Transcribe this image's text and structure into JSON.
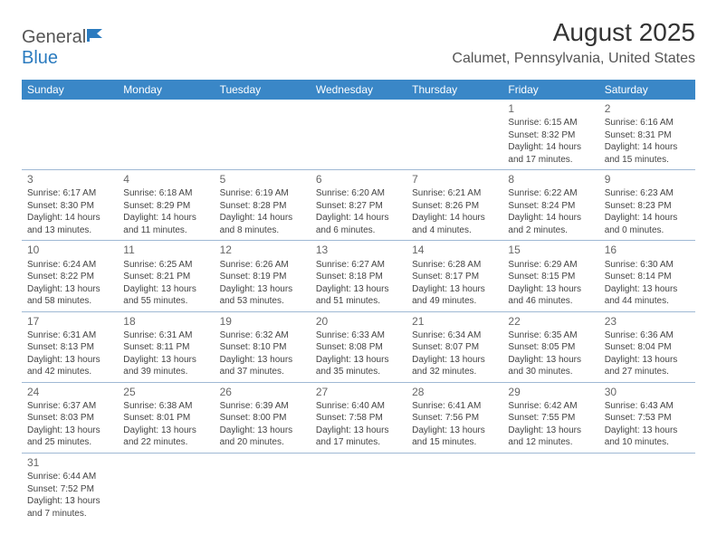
{
  "logo": {
    "general": "General",
    "blue": "Blue"
  },
  "title": "August 2025",
  "location": "Calumet, Pennsylvania, United States",
  "colors": {
    "header_bg": "#3a87c7",
    "header_text": "#ffffff",
    "border": "#9fb9d4",
    "text": "#444444",
    "title": "#333333",
    "location_text": "#555555"
  },
  "daynames": [
    "Sunday",
    "Monday",
    "Tuesday",
    "Wednesday",
    "Thursday",
    "Friday",
    "Saturday"
  ],
  "weeks": [
    [
      null,
      null,
      null,
      null,
      null,
      {
        "n": "1",
        "sr": "Sunrise: 6:15 AM",
        "ss": "Sunset: 8:32 PM",
        "d1": "Daylight: 14 hours",
        "d2": "and 17 minutes."
      },
      {
        "n": "2",
        "sr": "Sunrise: 6:16 AM",
        "ss": "Sunset: 8:31 PM",
        "d1": "Daylight: 14 hours",
        "d2": "and 15 minutes."
      }
    ],
    [
      {
        "n": "3",
        "sr": "Sunrise: 6:17 AM",
        "ss": "Sunset: 8:30 PM",
        "d1": "Daylight: 14 hours",
        "d2": "and 13 minutes."
      },
      {
        "n": "4",
        "sr": "Sunrise: 6:18 AM",
        "ss": "Sunset: 8:29 PM",
        "d1": "Daylight: 14 hours",
        "d2": "and 11 minutes."
      },
      {
        "n": "5",
        "sr": "Sunrise: 6:19 AM",
        "ss": "Sunset: 8:28 PM",
        "d1": "Daylight: 14 hours",
        "d2": "and 8 minutes."
      },
      {
        "n": "6",
        "sr": "Sunrise: 6:20 AM",
        "ss": "Sunset: 8:27 PM",
        "d1": "Daylight: 14 hours",
        "d2": "and 6 minutes."
      },
      {
        "n": "7",
        "sr": "Sunrise: 6:21 AM",
        "ss": "Sunset: 8:26 PM",
        "d1": "Daylight: 14 hours",
        "d2": "and 4 minutes."
      },
      {
        "n": "8",
        "sr": "Sunrise: 6:22 AM",
        "ss": "Sunset: 8:24 PM",
        "d1": "Daylight: 14 hours",
        "d2": "and 2 minutes."
      },
      {
        "n": "9",
        "sr": "Sunrise: 6:23 AM",
        "ss": "Sunset: 8:23 PM",
        "d1": "Daylight: 14 hours",
        "d2": "and 0 minutes."
      }
    ],
    [
      {
        "n": "10",
        "sr": "Sunrise: 6:24 AM",
        "ss": "Sunset: 8:22 PM",
        "d1": "Daylight: 13 hours",
        "d2": "and 58 minutes."
      },
      {
        "n": "11",
        "sr": "Sunrise: 6:25 AM",
        "ss": "Sunset: 8:21 PM",
        "d1": "Daylight: 13 hours",
        "d2": "and 55 minutes."
      },
      {
        "n": "12",
        "sr": "Sunrise: 6:26 AM",
        "ss": "Sunset: 8:19 PM",
        "d1": "Daylight: 13 hours",
        "d2": "and 53 minutes."
      },
      {
        "n": "13",
        "sr": "Sunrise: 6:27 AM",
        "ss": "Sunset: 8:18 PM",
        "d1": "Daylight: 13 hours",
        "d2": "and 51 minutes."
      },
      {
        "n": "14",
        "sr": "Sunrise: 6:28 AM",
        "ss": "Sunset: 8:17 PM",
        "d1": "Daylight: 13 hours",
        "d2": "and 49 minutes."
      },
      {
        "n": "15",
        "sr": "Sunrise: 6:29 AM",
        "ss": "Sunset: 8:15 PM",
        "d1": "Daylight: 13 hours",
        "d2": "and 46 minutes."
      },
      {
        "n": "16",
        "sr": "Sunrise: 6:30 AM",
        "ss": "Sunset: 8:14 PM",
        "d1": "Daylight: 13 hours",
        "d2": "and 44 minutes."
      }
    ],
    [
      {
        "n": "17",
        "sr": "Sunrise: 6:31 AM",
        "ss": "Sunset: 8:13 PM",
        "d1": "Daylight: 13 hours",
        "d2": "and 42 minutes."
      },
      {
        "n": "18",
        "sr": "Sunrise: 6:31 AM",
        "ss": "Sunset: 8:11 PM",
        "d1": "Daylight: 13 hours",
        "d2": "and 39 minutes."
      },
      {
        "n": "19",
        "sr": "Sunrise: 6:32 AM",
        "ss": "Sunset: 8:10 PM",
        "d1": "Daylight: 13 hours",
        "d2": "and 37 minutes."
      },
      {
        "n": "20",
        "sr": "Sunrise: 6:33 AM",
        "ss": "Sunset: 8:08 PM",
        "d1": "Daylight: 13 hours",
        "d2": "and 35 minutes."
      },
      {
        "n": "21",
        "sr": "Sunrise: 6:34 AM",
        "ss": "Sunset: 8:07 PM",
        "d1": "Daylight: 13 hours",
        "d2": "and 32 minutes."
      },
      {
        "n": "22",
        "sr": "Sunrise: 6:35 AM",
        "ss": "Sunset: 8:05 PM",
        "d1": "Daylight: 13 hours",
        "d2": "and 30 minutes."
      },
      {
        "n": "23",
        "sr": "Sunrise: 6:36 AM",
        "ss": "Sunset: 8:04 PM",
        "d1": "Daylight: 13 hours",
        "d2": "and 27 minutes."
      }
    ],
    [
      {
        "n": "24",
        "sr": "Sunrise: 6:37 AM",
        "ss": "Sunset: 8:03 PM",
        "d1": "Daylight: 13 hours",
        "d2": "and 25 minutes."
      },
      {
        "n": "25",
        "sr": "Sunrise: 6:38 AM",
        "ss": "Sunset: 8:01 PM",
        "d1": "Daylight: 13 hours",
        "d2": "and 22 minutes."
      },
      {
        "n": "26",
        "sr": "Sunrise: 6:39 AM",
        "ss": "Sunset: 8:00 PM",
        "d1": "Daylight: 13 hours",
        "d2": "and 20 minutes."
      },
      {
        "n": "27",
        "sr": "Sunrise: 6:40 AM",
        "ss": "Sunset: 7:58 PM",
        "d1": "Daylight: 13 hours",
        "d2": "and 17 minutes."
      },
      {
        "n": "28",
        "sr": "Sunrise: 6:41 AM",
        "ss": "Sunset: 7:56 PM",
        "d1": "Daylight: 13 hours",
        "d2": "and 15 minutes."
      },
      {
        "n": "29",
        "sr": "Sunrise: 6:42 AM",
        "ss": "Sunset: 7:55 PM",
        "d1": "Daylight: 13 hours",
        "d2": "and 12 minutes."
      },
      {
        "n": "30",
        "sr": "Sunrise: 6:43 AM",
        "ss": "Sunset: 7:53 PM",
        "d1": "Daylight: 13 hours",
        "d2": "and 10 minutes."
      }
    ],
    [
      {
        "n": "31",
        "sr": "Sunrise: 6:44 AM",
        "ss": "Sunset: 7:52 PM",
        "d1": "Daylight: 13 hours",
        "d2": "and 7 minutes."
      },
      null,
      null,
      null,
      null,
      null,
      null
    ]
  ]
}
